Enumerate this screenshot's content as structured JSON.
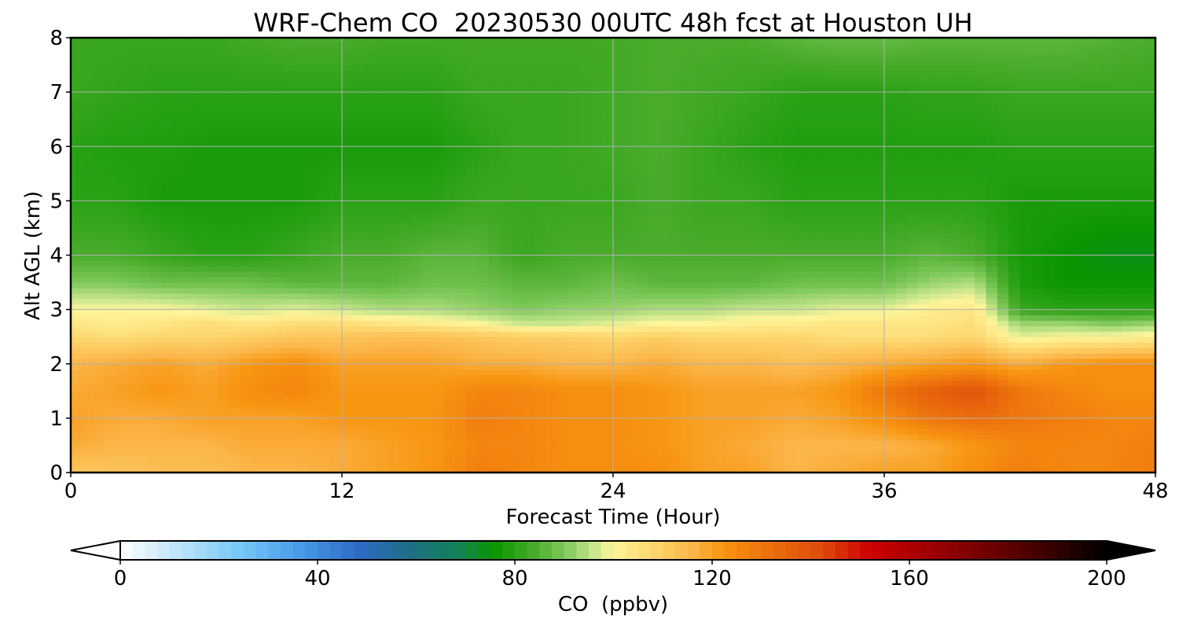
{
  "chart_data": {
    "type": "heatmap",
    "title": "WRF-Chem CO  20230530 00UTC 48h fcst at Houston UH",
    "xlabel": "Forecast Time (Hour)",
    "ylabel": "Alt AGL (km)",
    "xlim": [
      0,
      48
    ],
    "ylim": [
      0,
      8
    ],
    "xticks": [
      0,
      12,
      24,
      36,
      48
    ],
    "yticks": [
      0,
      1,
      2,
      3,
      4,
      5,
      6,
      7,
      8
    ],
    "grid": true,
    "x_hours": [
      0,
      2,
      4,
      6,
      8,
      10,
      12,
      14,
      16,
      18,
      20,
      22,
      24,
      26,
      28,
      30,
      32,
      34,
      36,
      38,
      40,
      42,
      44,
      46,
      48
    ],
    "z_levels_km": [
      0,
      0.5,
      1,
      1.5,
      2,
      2.5,
      2.75,
      3,
      3.5,
      4,
      5,
      6,
      7,
      8
    ],
    "values_ppbv": [
      [
        112,
        112,
        114,
        114,
        116,
        116,
        118,
        120,
        122,
        128,
        126,
        124,
        124,
        124,
        120,
        120,
        116,
        118,
        120,
        120,
        124,
        128,
        126,
        126,
        128
      ],
      [
        118,
        116,
        116,
        116,
        118,
        118,
        118,
        120,
        122,
        126,
        126,
        124,
        124,
        122,
        120,
        118,
        116,
        116,
        116,
        118,
        122,
        126,
        126,
        126,
        128
      ],
      [
        120,
        118,
        118,
        120,
        120,
        120,
        122,
        122,
        122,
        128,
        126,
        124,
        124,
        122,
        120,
        120,
        118,
        120,
        124,
        130,
        132,
        130,
        128,
        126,
        126
      ],
      [
        118,
        120,
        122,
        120,
        124,
        126,
        122,
        122,
        122,
        126,
        126,
        124,
        124,
        122,
        120,
        120,
        120,
        122,
        130,
        136,
        140,
        130,
        126,
        124,
        124
      ],
      [
        116,
        118,
        120,
        118,
        122,
        124,
        120,
        120,
        120,
        118,
        118,
        116,
        116,
        118,
        116,
        116,
        114,
        116,
        118,
        120,
        122,
        118,
        122,
        124,
        124
      ],
      [
        108,
        106,
        108,
        108,
        110,
        112,
        112,
        114,
        114,
        112,
        110,
        110,
        108,
        110,
        108,
        108,
        108,
        106,
        106,
        106,
        108,
        98,
        100,
        100,
        102
      ],
      [
        104,
        102,
        104,
        106,
        104,
        106,
        106,
        104,
        102,
        100,
        96,
        96,
        98,
        100,
        100,
        102,
        102,
        104,
        104,
        104,
        106,
        92,
        92,
        90,
        92
      ],
      [
        100,
        100,
        100,
        98,
        96,
        98,
        96,
        94,
        94,
        92,
        90,
        92,
        92,
        94,
        94,
        96,
        96,
        98,
        98,
        102,
        104,
        82,
        80,
        80,
        80
      ],
      [
        90,
        90,
        88,
        88,
        88,
        86,
        86,
        86,
        88,
        88,
        86,
        86,
        88,
        86,
        86,
        86,
        88,
        88,
        88,
        92,
        94,
        78,
        76,
        76,
        76
      ],
      [
        84,
        84,
        82,
        80,
        80,
        82,
        84,
        84,
        86,
        86,
        82,
        84,
        84,
        84,
        84,
        84,
        84,
        84,
        84,
        86,
        84,
        78,
        76,
        74,
        74
      ],
      [
        80,
        80,
        78,
        78,
        78,
        78,
        80,
        80,
        80,
        82,
        82,
        82,
        82,
        84,
        82,
        82,
        80,
        80,
        80,
        80,
        80,
        78,
        78,
        78,
        78
      ],
      [
        80,
        79,
        79,
        78,
        78,
        78,
        78,
        78,
        78,
        80,
        82,
        82,
        83,
        84,
        82,
        80,
        79,
        79,
        79,
        79,
        79,
        80,
        80,
        80,
        80
      ],
      [
        82,
        81,
        80,
        80,
        80,
        80,
        80,
        80,
        80,
        82,
        82,
        82,
        83,
        84,
        83,
        82,
        80,
        80,
        80,
        81,
        81,
        82,
        82,
        82,
        82
      ],
      [
        82,
        82,
        82,
        82,
        83,
        84,
        84,
        83,
        83,
        83,
        83,
        83,
        83,
        84,
        84,
        84,
        86,
        87,
        87,
        86,
        86,
        86,
        86,
        85,
        84
      ]
    ],
    "colorbar": {
      "label": "CO  (ppbv)",
      "ticks": [
        0,
        40,
        80,
        120,
        160,
        200
      ],
      "min": 0,
      "max": 200,
      "extend": "both",
      "stops": [
        {
          "v": 0,
          "c": "#ffffff"
        },
        {
          "v": 8,
          "c": "#d2ecfa"
        },
        {
          "v": 24,
          "c": "#78c8f8"
        },
        {
          "v": 36,
          "c": "#4a9ce8"
        },
        {
          "v": 48,
          "c": "#2d6cc8"
        },
        {
          "v": 58,
          "c": "#1f6e8a"
        },
        {
          "v": 68,
          "c": "#15805a"
        },
        {
          "v": 76,
          "c": "#0a9600"
        },
        {
          "v": 84,
          "c": "#4aac2c"
        },
        {
          "v": 90,
          "c": "#7ec85a"
        },
        {
          "v": 96,
          "c": "#c8e68c"
        },
        {
          "v": 100,
          "c": "#fff59a"
        },
        {
          "v": 108,
          "c": "#fdd66e"
        },
        {
          "v": 116,
          "c": "#fbb64a"
        },
        {
          "v": 122,
          "c": "#f89612"
        },
        {
          "v": 132,
          "c": "#ec6e0c"
        },
        {
          "v": 142,
          "c": "#de4c0c"
        },
        {
          "v": 152,
          "c": "#cc0000"
        },
        {
          "v": 164,
          "c": "#a00000"
        },
        {
          "v": 180,
          "c": "#600000"
        },
        {
          "v": 200,
          "c": "#000000"
        }
      ]
    }
  }
}
